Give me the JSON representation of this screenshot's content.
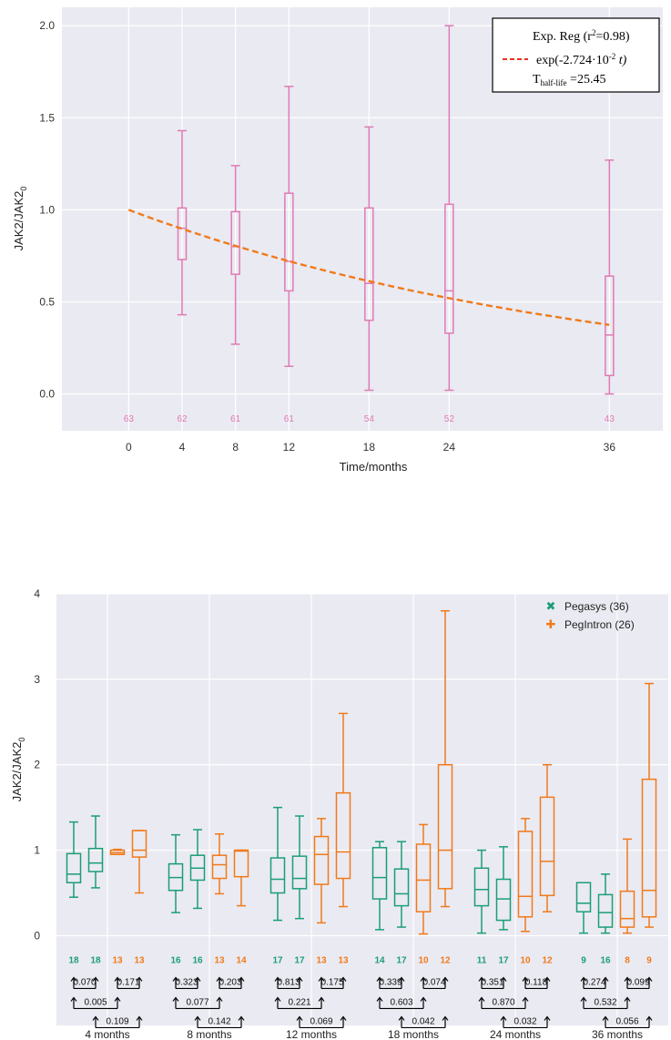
{
  "chart_data": [
    {
      "type": "box",
      "xlabel": "Time/months",
      "ylabel": "JAK2/JAK2",
      "ylabel_sub": "0",
      "xlim": [
        -5,
        40
      ],
      "ylim": [
        -0.2,
        2.1
      ],
      "xticks": [
        "0",
        "4",
        "8",
        "12",
        "18",
        "24",
        "36"
      ],
      "xtick_values": [
        0,
        4,
        8,
        12,
        18,
        24,
        36
      ],
      "yticks": [
        "0.0",
        "0.5",
        "1.0",
        "1.5",
        "2.0"
      ],
      "ytick_values": [
        0,
        0.5,
        1.0,
        1.5,
        2.0
      ],
      "grid": true,
      "box_color": "#e07ab4",
      "fit_color": "#f07a1a",
      "boxes": [
        {
          "x": 4,
          "min": 0.43,
          "q1": 0.73,
          "median": 0.9,
          "q3": 1.01,
          "max": 1.43
        },
        {
          "x": 8,
          "min": 0.27,
          "q1": 0.65,
          "median": 0.8,
          "q3": 0.99,
          "max": 1.24
        },
        {
          "x": 12,
          "min": 0.15,
          "q1": 0.56,
          "median": 0.72,
          "q3": 1.09,
          "max": 1.67
        },
        {
          "x": 18,
          "min": 0.02,
          "q1": 0.4,
          "median": 0.6,
          "q3": 1.01,
          "max": 1.45
        },
        {
          "x": 24,
          "min": 0.02,
          "q1": 0.33,
          "median": 0.56,
          "q3": 1.03,
          "max": 2.0
        },
        {
          "x": 36,
          "min": 0.0,
          "q1": 0.1,
          "median": 0.32,
          "q3": 0.64,
          "max": 1.27
        }
      ],
      "counts": [
        {
          "x": 0,
          "n": "63"
        },
        {
          "x": 4,
          "n": "62"
        },
        {
          "x": 8,
          "n": "61"
        },
        {
          "x": 12,
          "n": "61"
        },
        {
          "x": 18,
          "n": "54"
        },
        {
          "x": 24,
          "n": "52"
        },
        {
          "x": 36,
          "n": "43"
        }
      ],
      "fit": {
        "rate": 0.02724,
        "x_from": 0,
        "x_to": 36
      },
      "legend": {
        "position": "top-right",
        "title": "Exp. Reg (r",
        "title_sup": "2",
        "title_end": "=0.98)",
        "line_label": "exp(-2.724·10",
        "line_label_sup": "-2",
        "line_label_end": " t)",
        "halflife_prefix": "T",
        "halflife_sub": "half-life",
        "halflife_value": " =25.45"
      }
    },
    {
      "type": "box",
      "xlabel": "",
      "ylabel": "JAK2/JAK2",
      "ylabel_sub": "0",
      "ylim": [
        -1.05,
        4
      ],
      "yticks": [
        "0",
        "1",
        "2",
        "3",
        "4"
      ],
      "ytick_values": [
        0,
        1,
        2,
        3,
        4
      ],
      "grid": true,
      "categories": [
        "4 months",
        "8 months",
        "12 months",
        "18 months",
        "24 months",
        "36 months"
      ],
      "colors": {
        "pegasys": "#1a9e77",
        "pegintron": "#f07a1a"
      },
      "legend": {
        "position": "top-right",
        "entries": [
          {
            "label": "Pegasys (36)",
            "marker": "✖",
            "key": "pegasys"
          },
          {
            "label": "PegIntron (26)",
            "marker": "✚",
            "key": "pegintron"
          }
        ]
      },
      "groups": [
        {
          "boxes": [
            {
              "series": "pegasys",
              "min": 0.45,
              "q1": 0.62,
              "median": 0.72,
              "q3": 0.96,
              "max": 1.33,
              "n": "18"
            },
            {
              "series": "pegasys",
              "min": 0.56,
              "q1": 0.75,
              "median": 0.85,
              "q3": 1.02,
              "max": 1.4,
              "n": "18"
            },
            {
              "series": "pegintron",
              "min": 0.95,
              "q1": 0.95,
              "median": 0.97,
              "q3": 1.0,
              "max": 1.01,
              "n": "13"
            },
            {
              "series": "pegintron",
              "min": 0.5,
              "q1": 0.92,
              "median": 1.0,
              "q3": 1.23,
              "max": 1.23,
              "n": "13"
            }
          ],
          "pvalues": [
            "0.070",
            "0.171",
            "0.005",
            "0.109"
          ]
        },
        {
          "boxes": [
            {
              "series": "pegasys",
              "min": 0.27,
              "q1": 0.53,
              "median": 0.68,
              "q3": 0.84,
              "max": 1.18,
              "n": "16"
            },
            {
              "series": "pegasys",
              "min": 0.32,
              "q1": 0.65,
              "median": 0.79,
              "q3": 0.94,
              "max": 1.24,
              "n": "16"
            },
            {
              "series": "pegintron",
              "min": 0.49,
              "q1": 0.67,
              "median": 0.83,
              "q3": 0.94,
              "max": 1.19,
              "n": "13"
            },
            {
              "series": "pegintron",
              "min": 0.35,
              "q1": 0.69,
              "median": 0.99,
              "q3": 1.0,
              "max": 1.0,
              "n": "14"
            }
          ],
          "pvalues": [
            "0.323",
            "0.203",
            "0.077",
            "0.142"
          ]
        },
        {
          "boxes": [
            {
              "series": "pegasys",
              "min": 0.18,
              "q1": 0.5,
              "median": 0.66,
              "q3": 0.91,
              "max": 1.5,
              "n": "17"
            },
            {
              "series": "pegasys",
              "min": 0.2,
              "q1": 0.55,
              "median": 0.67,
              "q3": 0.93,
              "max": 1.4,
              "n": "17"
            },
            {
              "series": "pegintron",
              "min": 0.15,
              "q1": 0.6,
              "median": 0.95,
              "q3": 1.16,
              "max": 1.37,
              "n": "13"
            },
            {
              "series": "pegintron",
              "min": 0.34,
              "q1": 0.67,
              "median": 0.98,
              "q3": 1.67,
              "max": 2.6,
              "n": "13"
            }
          ],
          "pvalues": [
            "0.813",
            "0.175",
            "0.221",
            "0.069"
          ]
        },
        {
          "boxes": [
            {
              "series": "pegasys",
              "min": 0.07,
              "q1": 0.43,
              "median": 0.68,
              "q3": 1.03,
              "max": 1.1,
              "n": "14"
            },
            {
              "series": "pegasys",
              "min": 0.1,
              "q1": 0.35,
              "median": 0.49,
              "q3": 0.78,
              "max": 1.1,
              "n": "17"
            },
            {
              "series": "pegintron",
              "min": 0.02,
              "q1": 0.28,
              "median": 0.65,
              "q3": 1.07,
              "max": 1.3,
              "n": "10"
            },
            {
              "series": "pegintron",
              "min": 0.34,
              "q1": 0.55,
              "median": 1.0,
              "q3": 2.0,
              "max": 3.8,
              "n": "12"
            }
          ],
          "pvalues": [
            "0.339",
            "0.074",
            "0.603",
            "0.042"
          ]
        },
        {
          "boxes": [
            {
              "series": "pegasys",
              "min": 0.03,
              "q1": 0.35,
              "median": 0.54,
              "q3": 0.79,
              "max": 1.0,
              "n": "11"
            },
            {
              "series": "pegasys",
              "min": 0.07,
              "q1": 0.18,
              "median": 0.43,
              "q3": 0.66,
              "max": 1.04,
              "n": "17"
            },
            {
              "series": "pegintron",
              "min": 0.05,
              "q1": 0.22,
              "median": 0.46,
              "q3": 1.22,
              "max": 1.37,
              "n": "10"
            },
            {
              "series": "pegintron",
              "min": 0.28,
              "q1": 0.47,
              "median": 0.87,
              "q3": 1.62,
              "max": 2.0,
              "n": "12"
            }
          ],
          "pvalues": [
            "0.351",
            "0.118",
            "0.870",
            "0.032"
          ]
        },
        {
          "boxes": [
            {
              "series": "pegasys",
              "min": 0.03,
              "q1": 0.28,
              "median": 0.38,
              "q3": 0.62,
              "max": 0.62,
              "n": "9"
            },
            {
              "series": "pegasys",
              "min": 0.03,
              "q1": 0.1,
              "median": 0.27,
              "q3": 0.48,
              "max": 0.72,
              "n": "16"
            },
            {
              "series": "pegintron",
              "min": 0.03,
              "q1": 0.1,
              "median": 0.2,
              "q3": 0.52,
              "max": 1.13,
              "n": "8"
            },
            {
              "series": "pegintron",
              "min": 0.1,
              "q1": 0.22,
              "median": 0.53,
              "q3": 1.83,
              "max": 2.95,
              "n": "9"
            }
          ],
          "pvalues": [
            "0.274",
            "0.099",
            "0.532",
            "0.056"
          ]
        }
      ]
    }
  ]
}
